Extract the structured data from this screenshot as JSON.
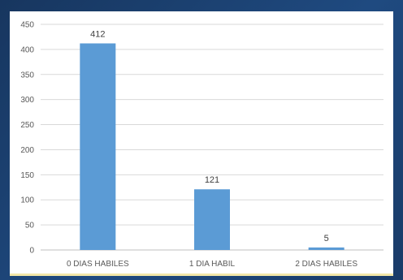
{
  "chart_data": {
    "type": "bar",
    "categories": [
      "0 DIAS HABILES",
      "1 DIA HABIL",
      "2 DIAS HABILES"
    ],
    "values": [
      412,
      121,
      5
    ],
    "data_labels": [
      "412",
      "121",
      "5"
    ],
    "title": "",
    "xlabel": "",
    "ylabel": "",
    "ylim": [
      0,
      450
    ],
    "yticks": [
      0,
      50,
      100,
      150,
      200,
      250,
      300,
      350,
      400,
      450
    ],
    "grid": true,
    "legend": "none",
    "bar_color": "#5b9bd5"
  }
}
